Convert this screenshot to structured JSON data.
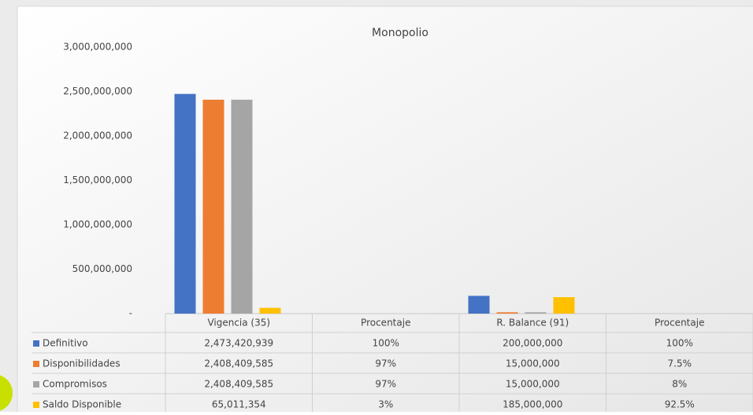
{
  "chart_data": {
    "type": "bar",
    "title": "Monopolio",
    "categories": [
      "Vigencia (35)",
      "Procentaje",
      "R. Balance (91)",
      "Procentaje"
    ],
    "series": [
      {
        "name": "Definitivo",
        "color": "#4472c4",
        "values": [
          2473420939,
          100,
          200000000,
          100
        ],
        "value_labels": [
          "2,473,420,939",
          "100%",
          "200,000,000",
          "100%"
        ]
      },
      {
        "name": "Disponibilidades",
        "color": "#ed7d31",
        "values": [
          2408409585,
          97,
          15000000,
          7.5
        ],
        "value_labels": [
          "2,408,409,585",
          "97%",
          "15,000,000",
          "7.5%"
        ]
      },
      {
        "name": "Compromisos",
        "color": "#a5a5a5",
        "values": [
          2408409585,
          97,
          15000000,
          8
        ],
        "value_labels": [
          "2,408,409,585",
          "97%",
          "15,000,000",
          "8%"
        ]
      },
      {
        "name": "Saldo Disponible",
        "color": "#ffc000",
        "values": [
          65011354,
          3,
          185000000,
          92.5
        ],
        "value_labels": [
          "65,011,354",
          "3%",
          "185,000,000",
          "92.5%"
        ]
      }
    ],
    "ylim": [
      0,
      3000000000
    ],
    "yticks": [
      {
        "value": 0,
        "label": "-"
      },
      {
        "value": 500000000,
        "label": "500,000,000"
      },
      {
        "value": 1000000000,
        "label": "1,000,000,000"
      },
      {
        "value": 1500000000,
        "label": "1,500,000,000"
      },
      {
        "value": 2000000000,
        "label": "2,000,000,000"
      },
      {
        "value": 2500000000,
        "label": "2,500,000,000"
      },
      {
        "value": 3000000000,
        "label": "3,000,000,000"
      }
    ],
    "grid": false
  }
}
